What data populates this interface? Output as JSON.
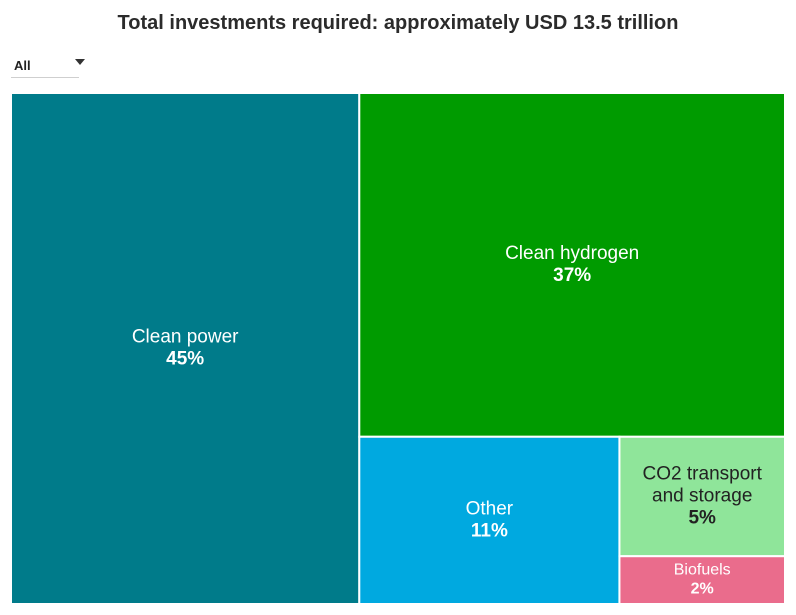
{
  "title": "Total investments required: approximately USD 13.5 trillion",
  "filter": {
    "selected": "All"
  },
  "chart_data": {
    "type": "treemap",
    "title": "Total investments required: approximately USD 13.5 trillion",
    "items": [
      {
        "name": "Clean power",
        "value": 45,
        "label": "45%",
        "color": "#007b8a",
        "text_color": "#ffffff"
      },
      {
        "name": "Clean hydrogen",
        "value": 37,
        "label": "37%",
        "color": "#009b00",
        "text_color": "#ffffff"
      },
      {
        "name": "Other",
        "value": 11,
        "label": "11%",
        "color": "#00a9e0",
        "text_color": "#ffffff"
      },
      {
        "name": "CO2 transport and storage",
        "value": 5,
        "label": "5%",
        "color": "#8fe59a",
        "text_color": "#222222"
      },
      {
        "name": "Biofuels",
        "value": 2,
        "label": "2%",
        "color": "#ea6c8c",
        "text_color": "#ffffff"
      }
    ]
  }
}
